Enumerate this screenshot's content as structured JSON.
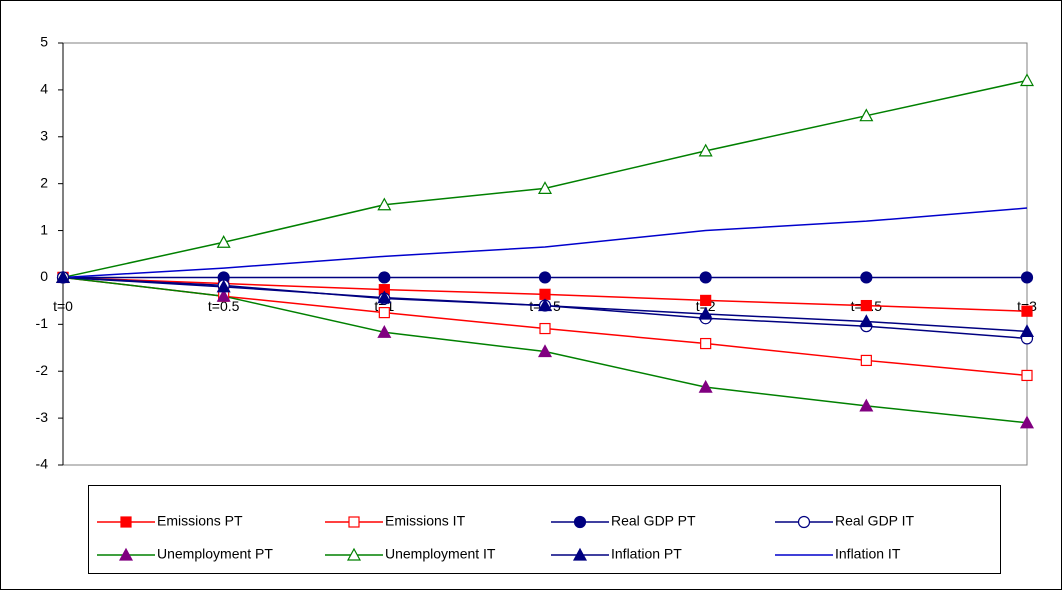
{
  "chart_data": {
    "type": "line",
    "categories": [
      "t=0",
      "t=0.5",
      "t=1",
      "t=1.5",
      "t=2",
      "t=2.5",
      "t=3"
    ],
    "series": [
      {
        "name": "Emissions PT",
        "color": "#ff0000",
        "marker": "square",
        "marker_filled": true,
        "marker_color": "#ff0000",
        "values": [
          0,
          -0.13,
          -0.26,
          -0.36,
          -0.49,
          -0.6,
          -0.72
        ]
      },
      {
        "name": "Emissions IT",
        "color": "#ff0000",
        "marker": "square",
        "marker_filled": false,
        "marker_color": "#ff0000",
        "values": [
          0,
          -0.4,
          -0.75,
          -1.09,
          -1.41,
          -1.77,
          -2.09
        ]
      },
      {
        "name": "Real GDP PT",
        "color": "#000080",
        "marker": "circle",
        "marker_filled": true,
        "marker_color": "#000080",
        "values": [
          0,
          0,
          0,
          0,
          0,
          0,
          0
        ]
      },
      {
        "name": "Real GDP IT",
        "color": "#000080",
        "marker": "circle",
        "marker_filled": false,
        "marker_color": "#000080",
        "values": [
          0,
          -0.17,
          -0.45,
          -0.6,
          -0.87,
          -1.04,
          -1.3
        ]
      },
      {
        "name": "Unemployment PT",
        "color": "#008000",
        "marker": "triangle",
        "marker_filled": true,
        "marker_color": "#800080",
        "values": [
          0,
          -0.4,
          -1.17,
          -1.58,
          -2.34,
          -2.74,
          -3.1
        ]
      },
      {
        "name": "Unemployment IT",
        "color": "#008000",
        "marker": "triangle",
        "marker_filled": false,
        "marker_color": "#008000",
        "values": [
          0,
          0.75,
          1.55,
          1.9,
          2.7,
          3.45,
          4.2
        ]
      },
      {
        "name": "Inflation PT",
        "color": "#000080",
        "marker": "triangle",
        "marker_filled": true,
        "marker_color": "#000080",
        "values": [
          0,
          -0.2,
          -0.43,
          -0.6,
          -0.78,
          -0.94,
          -1.15
        ]
      },
      {
        "name": "Inflation IT",
        "color": "#0000cc",
        "marker": "none",
        "marker_filled": false,
        "marker_color": "#0000cc",
        "values": [
          0,
          0.2,
          0.45,
          0.65,
          1.0,
          1.2,
          1.48
        ]
      }
    ],
    "ylim": [
      -4,
      5
    ],
    "yticks": [
      -4,
      -3,
      -2,
      -1,
      0,
      1,
      2,
      3,
      4,
      5
    ],
    "grid": false,
    "legend": "bottom"
  }
}
